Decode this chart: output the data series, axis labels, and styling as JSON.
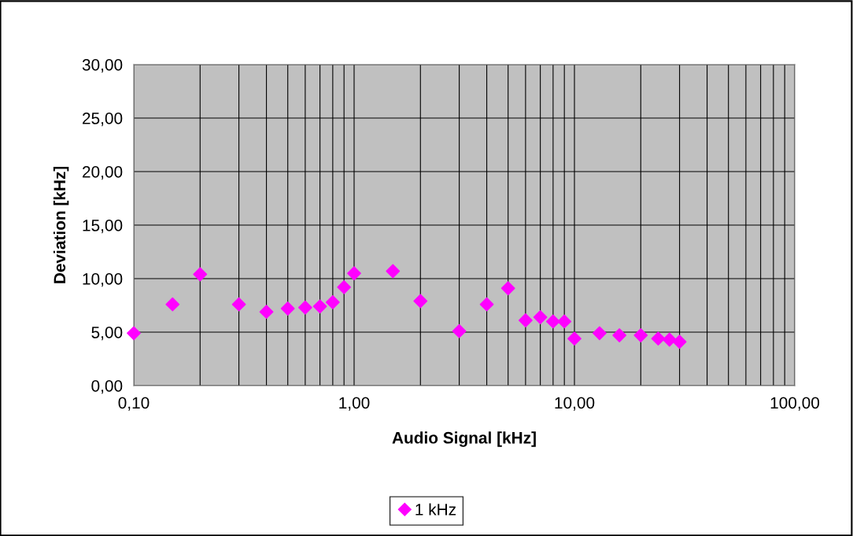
{
  "chart_data": {
    "type": "scatter",
    "xlabel": "Audio Signal [kHz]",
    "ylabel": "Deviation [kHz]",
    "log": "x",
    "x": [
      0.1,
      0.15,
      0.2,
      0.3,
      0.4,
      0.5,
      0.6,
      0.7,
      0.8,
      0.9,
      1.0,
      1.5,
      2,
      3,
      4,
      5,
      6,
      7,
      8,
      9,
      10,
      13,
      16,
      20,
      24,
      27,
      30
    ],
    "series": [
      {
        "name": "1 kHz",
        "color": "#ff00ff",
        "values": [
          4.9,
          7.6,
          10.4,
          7.6,
          6.9,
          7.2,
          7.3,
          7.4,
          7.8,
          9.2,
          10.5,
          10.7,
          7.9,
          5.1,
          7.6,
          9.1,
          6.1,
          6.4,
          6.0,
          6.0,
          4.4,
          4.9,
          4.7,
          4.7,
          4.4,
          4.3,
          4.1
        ]
      }
    ],
    "xlim": [
      0.1,
      100
    ],
    "ylim": [
      0,
      30
    ],
    "xticks": [
      {
        "value": 0.1,
        "label": "0,10"
      },
      {
        "value": 0.2,
        "label": null
      },
      {
        "value": 0.3,
        "label": null
      },
      {
        "value": 0.4,
        "label": null
      },
      {
        "value": 0.5,
        "label": null
      },
      {
        "value": 0.6,
        "label": null
      },
      {
        "value": 0.7,
        "label": null
      },
      {
        "value": 0.8,
        "label": null
      },
      {
        "value": 0.9,
        "label": null
      },
      {
        "value": 1,
        "label": "1,00"
      },
      {
        "value": 2,
        "label": null
      },
      {
        "value": 3,
        "label": null
      },
      {
        "value": 4,
        "label": null
      },
      {
        "value": 5,
        "label": null
      },
      {
        "value": 6,
        "label": null
      },
      {
        "value": 7,
        "label": null
      },
      {
        "value": 8,
        "label": null
      },
      {
        "value": 9,
        "label": null
      },
      {
        "value": 10,
        "label": "10,00"
      },
      {
        "value": 20,
        "label": null
      },
      {
        "value": 30,
        "label": null
      },
      {
        "value": 40,
        "label": null
      },
      {
        "value": 50,
        "label": null
      },
      {
        "value": 60,
        "label": null
      },
      {
        "value": 70,
        "label": null
      },
      {
        "value": 80,
        "label": null
      },
      {
        "value": 90,
        "label": null
      },
      {
        "value": 100,
        "label": "100,00"
      }
    ],
    "yticks": [
      {
        "value": 0,
        "label": "0,00"
      },
      {
        "value": 5,
        "label": "5,00"
      },
      {
        "value": 10,
        "label": "10,00"
      },
      {
        "value": 15,
        "label": "15,00"
      },
      {
        "value": 20,
        "label": "20,00"
      },
      {
        "value": 25,
        "label": "25,00"
      },
      {
        "value": 30,
        "label": "30,00"
      }
    ],
    "grid": true,
    "legend": "bottom",
    "marker": "diamond"
  }
}
